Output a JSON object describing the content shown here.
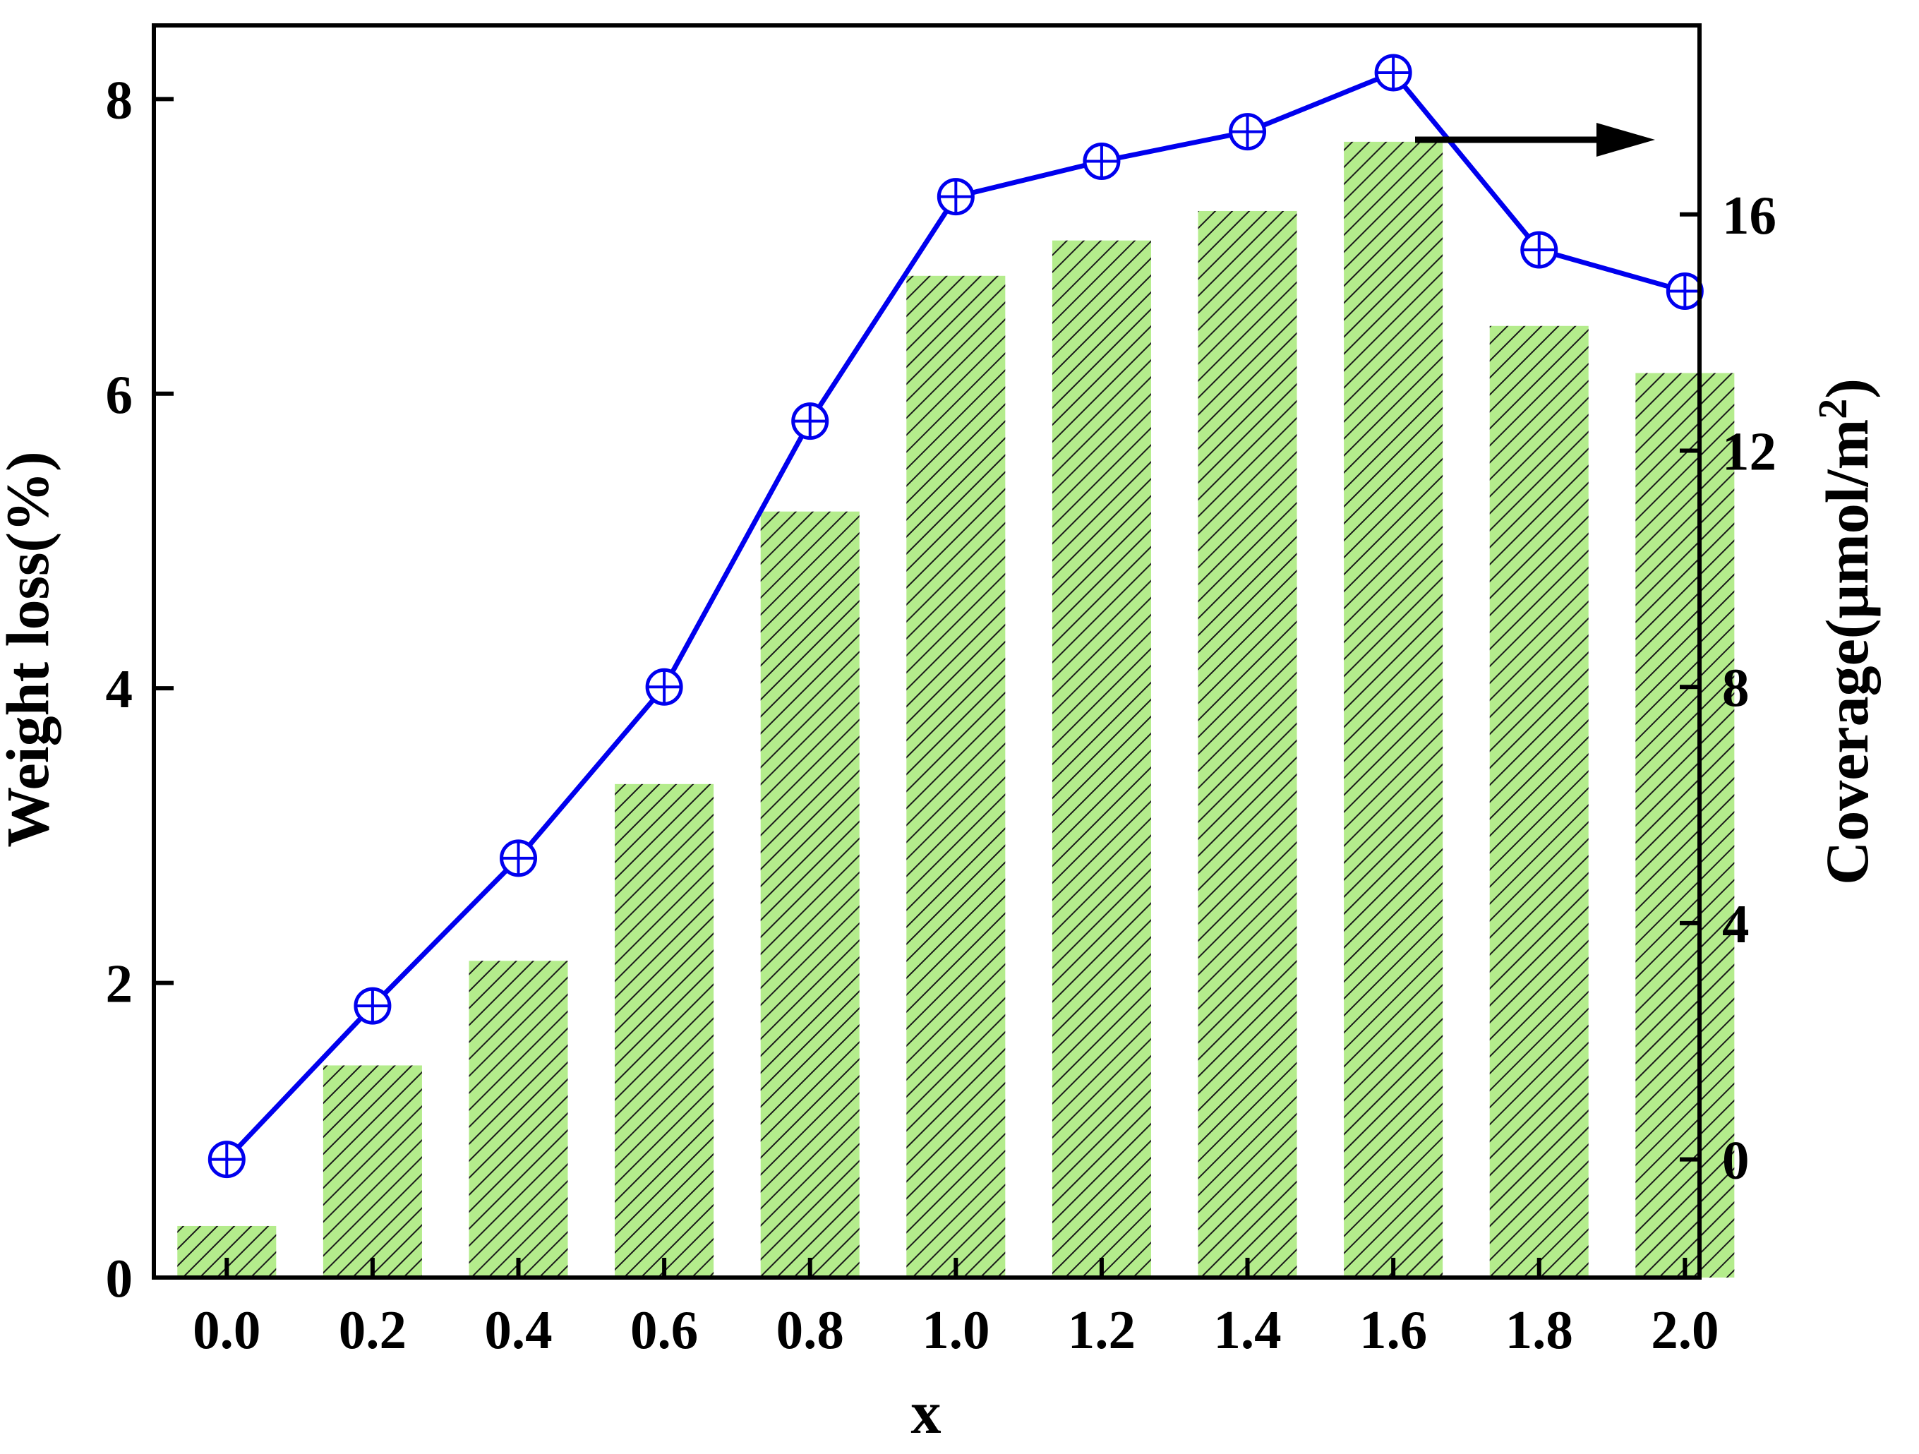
{
  "chart_data": {
    "type": "bar",
    "categories": [
      "0.0",
      "0.2",
      "0.4",
      "0.6",
      "0.8",
      "1.0",
      "1.2",
      "1.4",
      "1.6",
      "1.8",
      "2.0"
    ],
    "series": [
      {
        "type": "bar",
        "axis": "left",
        "values": [
          0.35,
          1.44,
          2.15,
          3.35,
          5.2,
          6.8,
          7.04,
          7.24,
          7.71,
          6.46,
          6.14
        ],
        "fill_color": "#b4ec8c",
        "hatch_color": "#1a1a1a",
        "hatch": "diagonal"
      },
      {
        "type": "line",
        "axis": "right",
        "values": [
          0.0,
          2.6,
          5.1,
          8.0,
          12.5,
          16.3,
          16.9,
          17.4,
          18.4,
          15.4,
          14.7
        ],
        "line_color": "#0000ee",
        "marker": "circle-plus"
      }
    ],
    "xlabel": "x",
    "ylabel": "Weight loss(%)",
    "y2label": "Coverage(μmol/m²)",
    "y2label_parts": {
      "text": "Coverage(μmol/m",
      "sup": "2",
      "close": ")"
    },
    "ylim": [
      0,
      8.5
    ],
    "y2lim": [
      -2,
      19.2
    ],
    "yticks": [
      0,
      2,
      4,
      6,
      8
    ],
    "ytick_labels": [
      "0",
      "2",
      "4",
      "6",
      "8"
    ],
    "y2ticks": [
      0,
      4,
      8,
      12,
      16
    ],
    "y2tick_labels": [
      "0",
      "4",
      "8",
      "12",
      "16"
    ],
    "grid": false,
    "legend": "none",
    "annotation": "arrow pointing right toward right axis"
  }
}
